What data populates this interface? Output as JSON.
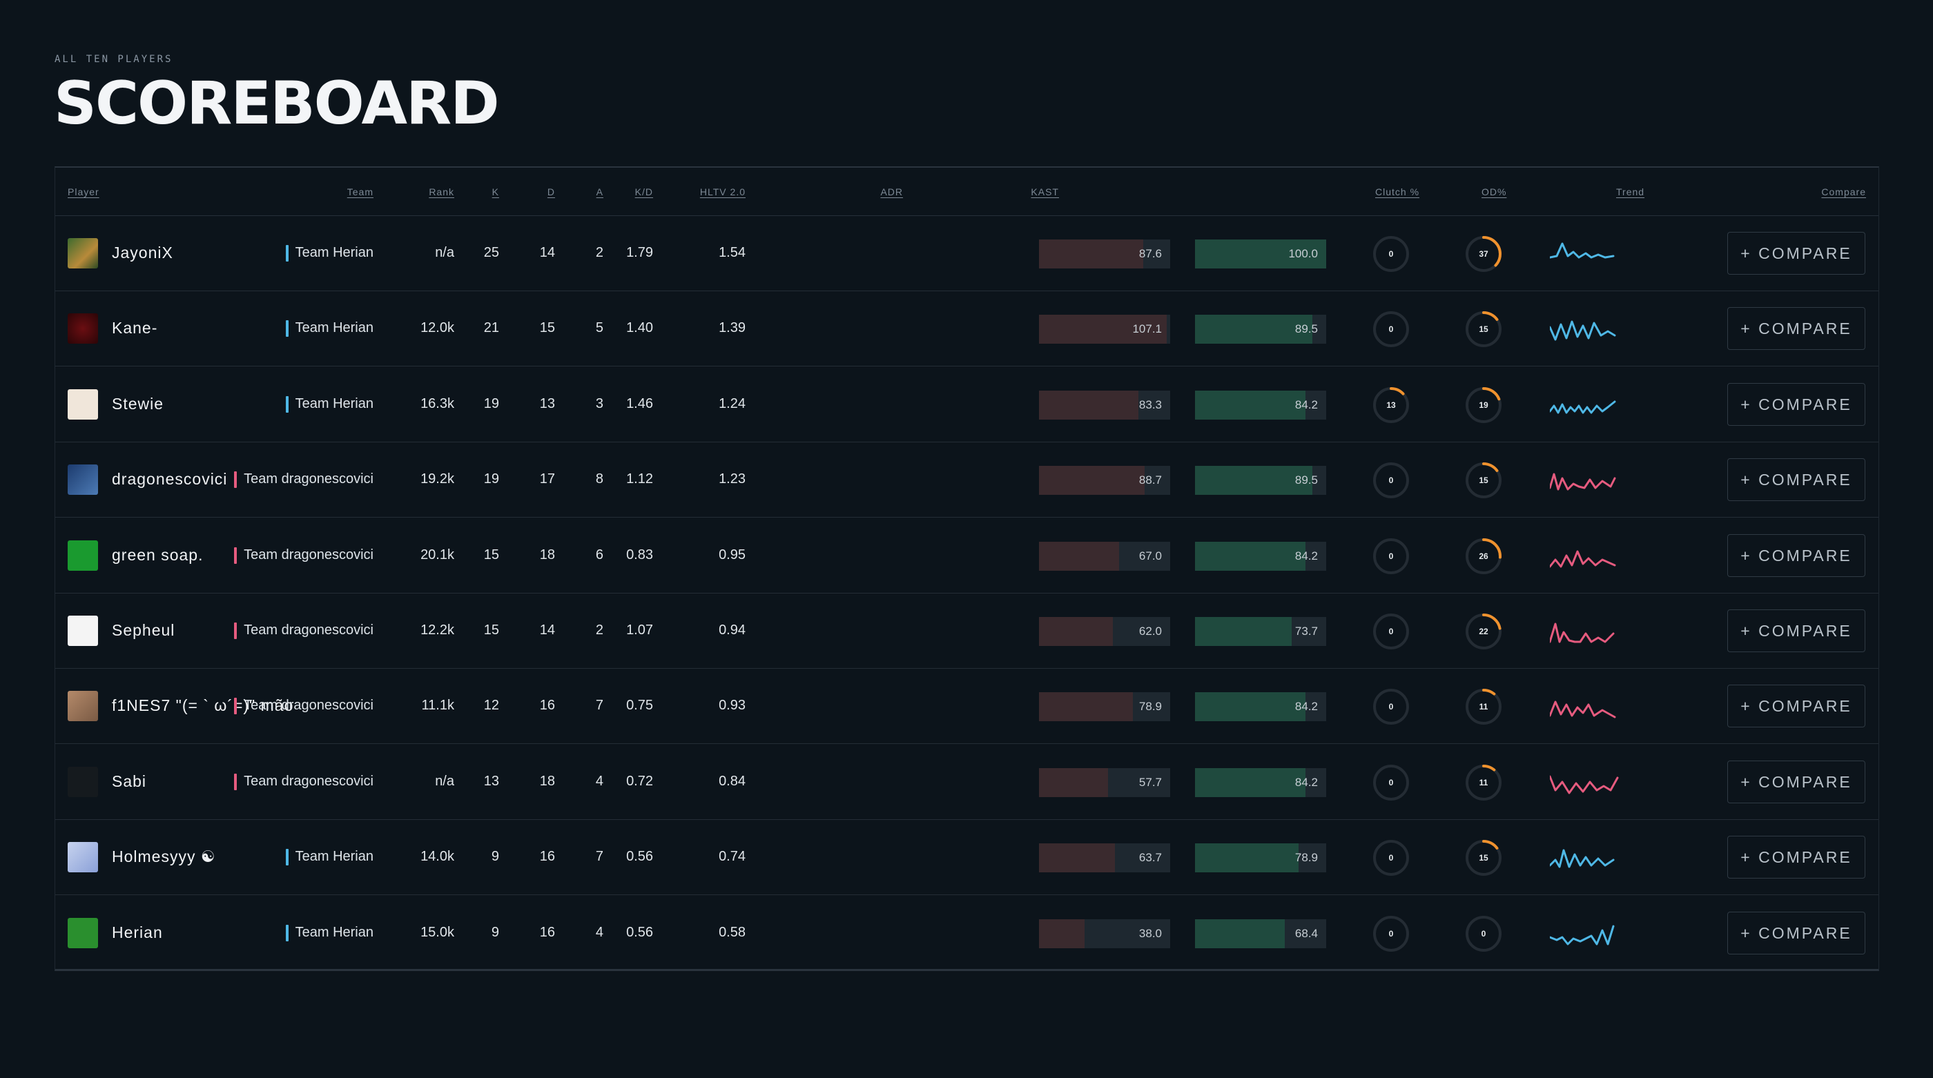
{
  "header": {
    "eyebrow": "ALL TEN PLAYERS",
    "title": "SCOREBOARD"
  },
  "columns": {
    "player": "Player",
    "team": "Team",
    "rank": "Rank",
    "k": "K",
    "d": "D",
    "a": "A",
    "kd": "K/D",
    "hltv": "HLTV 2.0",
    "adr": "ADR",
    "kast": "KAST",
    "clutch": "Clutch %",
    "od": "OD%",
    "trend": "Trend",
    "compare": "Compare"
  },
  "colors": {
    "team_herian": "#4fb8e6",
    "team_dragonescovici": "#e65b7f",
    "ring_accent": "#f0922e",
    "ring_track": "#242c34"
  },
  "players": [
    {
      "name": "JayoniX",
      "team": "Team Herian",
      "side": "blue",
      "rank": "n/a",
      "k": "25",
      "d": "14",
      "a": "2",
      "kd": "1.79",
      "hltv": "1.54",
      "adr": "87.6",
      "kast": "100.0",
      "clutch": "0",
      "od": "37",
      "avatar_icon": "green-character-avatar",
      "compare": "+ COMPARE"
    },
    {
      "name": "Kane-",
      "team": "Team Herian",
      "side": "blue",
      "rank": "12.0k",
      "k": "21",
      "d": "15",
      "a": "5",
      "kd": "1.40",
      "hltv": "1.39",
      "adr": "107.1",
      "kast": "89.5",
      "clutch": "0",
      "od": "15",
      "avatar_icon": "dark-red-avatar",
      "compare": "+ COMPARE"
    },
    {
      "name": "Stewie",
      "team": "Team Herian",
      "side": "blue",
      "rank": "16.3k",
      "k": "19",
      "d": "13",
      "a": "3",
      "kd": "1.46",
      "hltv": "1.24",
      "adr": "83.3",
      "kast": "84.2",
      "clutch": "13",
      "od": "19",
      "avatar_icon": "cartoon-baby-avatar",
      "compare": "+ COMPARE"
    },
    {
      "name": "dragonescovici",
      "team": "Team dragonescovici",
      "side": "red",
      "rank": "19.2k",
      "k": "19",
      "d": "17",
      "a": "8",
      "kd": "1.12",
      "hltv": "1.23",
      "adr": "88.7",
      "kast": "89.5",
      "clutch": "0",
      "od": "15",
      "avatar_icon": "blue-logo-avatar",
      "compare": "+ COMPARE"
    },
    {
      "name": "green soap.",
      "team": "Team dragonescovici",
      "side": "red",
      "rank": "20.1k",
      "k": "15",
      "d": "18",
      "a": "6",
      "kd": "0.83",
      "hltv": "0.95",
      "adr": "67.0",
      "kast": "84.2",
      "clutch": "0",
      "od": "26",
      "avatar_icon": "green-frog-avatar",
      "compare": "+ COMPARE"
    },
    {
      "name": "Sepheul",
      "team": "Team dragonescovici",
      "side": "red",
      "rank": "12.2k",
      "k": "15",
      "d": "14",
      "a": "2",
      "kd": "1.07",
      "hltv": "0.94",
      "adr": "62.0",
      "kast": "73.7",
      "clutch": "0",
      "od": "22",
      "avatar_icon": "monogram-avatar",
      "compare": "+ COMPARE"
    },
    {
      "name": "f1NES7 \"(= ` ω´=)\" mão",
      "team": "Team dragonescovici",
      "side": "red",
      "rank": "11.1k",
      "k": "12",
      "d": "16",
      "a": "7",
      "kd": "0.75",
      "hltv": "0.93",
      "adr": "78.9",
      "kast": "84.2",
      "clutch": "0",
      "od": "11",
      "avatar_icon": "photo-avatar",
      "compare": "+ COMPARE"
    },
    {
      "name": "Sabi",
      "team": "Team dragonescovici",
      "side": "red",
      "rank": "n/a",
      "k": "13",
      "d": "18",
      "a": "4",
      "kd": "0.72",
      "hltv": "0.84",
      "adr": "57.7",
      "kast": "84.2",
      "clutch": "0",
      "od": "11",
      "avatar_icon": "snake-logo-avatar",
      "compare": "+ COMPARE"
    },
    {
      "name": "Holmesyyy ☯",
      "team": "Team Herian",
      "side": "blue",
      "rank": "14.0k",
      "k": "9",
      "d": "16",
      "a": "7",
      "kd": "0.56",
      "hltv": "0.74",
      "adr": "63.7",
      "kast": "78.9",
      "clutch": "0",
      "od": "15",
      "avatar_icon": "anime-avatar",
      "compare": "+ COMPARE"
    },
    {
      "name": "Herian",
      "team": "Team Herian",
      "side": "blue",
      "rank": "15.0k",
      "k": "9",
      "d": "16",
      "a": "4",
      "kd": "0.56",
      "hltv": "0.58",
      "adr": "38.0",
      "kast": "68.4",
      "clutch": "0",
      "od": "0",
      "avatar_icon": "pepe-sunglasses-avatar",
      "compare": "+ COMPARE"
    }
  ]
}
